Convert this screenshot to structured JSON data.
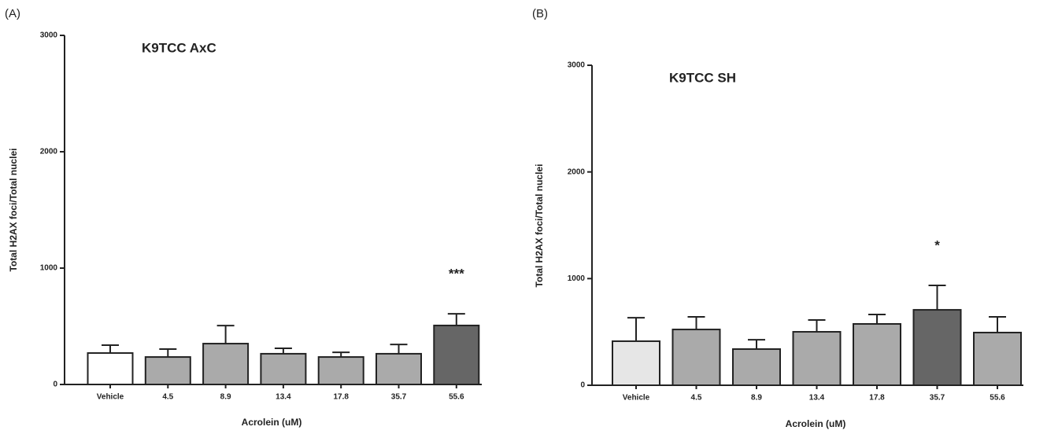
{
  "chart_data": [
    {
      "type": "bar",
      "panel_label": "(A)",
      "title": "K9TCC AxC",
      "x_label": "Acrolein (uM)",
      "y_label": "Total H2AX foci/Total nuclei",
      "categories": [
        "Vehicle",
        "4.5",
        "8.9",
        "13.4",
        "17.8",
        "35.7",
        "55.6"
      ],
      "values": [
        270,
        236,
        351,
        264,
        236,
        264,
        507
      ],
      "errors": [
        68,
        68,
        155,
        47,
        40,
        80,
        100
      ],
      "colors": [
        "#ffffff",
        "#aaaaaa",
        "#aaaaaa",
        "#aaaaaa",
        "#aaaaaa",
        "#aaaaaa",
        "#666666"
      ],
      "ylim": [
        0,
        3000
      ],
      "yticks": [
        0,
        1000,
        2000,
        3000
      ],
      "annotations": [
        {
          "text": "***",
          "category": "55.6"
        }
      ]
    },
    {
      "type": "bar",
      "panel_label": "(B)",
      "title": "K9TCC SH",
      "x_label": "Acrolein (uM)",
      "y_label": "Total H2AX foci/Total nuclei",
      "categories": [
        "Vehicle",
        "4.5",
        "8.9",
        "13.4",
        "17.8",
        "35.7",
        "55.6"
      ],
      "values": [
        413,
        523,
        339,
        501,
        575,
        707,
        494
      ],
      "errors": [
        220,
        118,
        88,
        111,
        88,
        229,
        147
      ],
      "colors": [
        "#e6e6e6",
        "#aaaaaa",
        "#aaaaaa",
        "#aaaaaa",
        "#aaaaaa",
        "#666666",
        "#aaaaaa"
      ],
      "ylim": [
        0,
        3000
      ],
      "yticks": [
        0,
        1000,
        2000,
        3000
      ],
      "annotations": [
        {
          "text": "*",
          "category": "35.7"
        }
      ]
    }
  ]
}
